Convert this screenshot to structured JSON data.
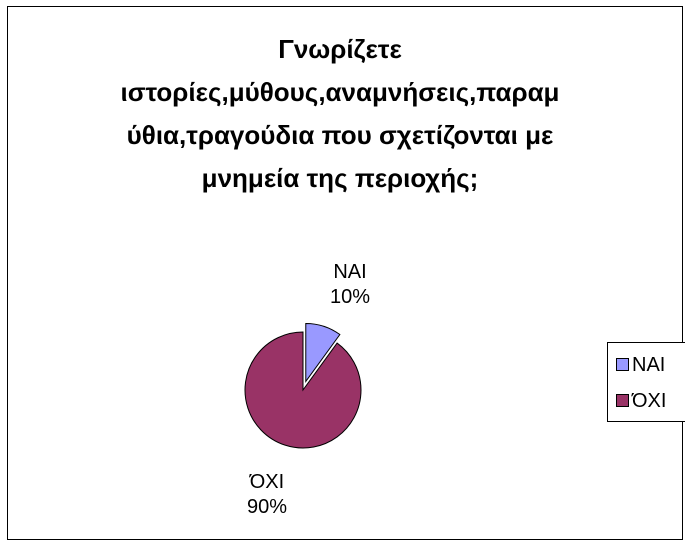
{
  "chart_data": {
    "type": "pie",
    "title_lines": [
      "Γνωρίζετε",
      "ιστορίες,μύθους,αναμνήσεις,παραμ",
      "ύθια,τραγούδια που σχετίζονται με",
      "μνημεία της περιοχής;"
    ],
    "slices": [
      {
        "label": "ΝΑΙ",
        "value": 10,
        "percent_label": "10%",
        "color": "#9999ff",
        "exploded": true
      },
      {
        "label": "ΌΧΙ",
        "value": 90,
        "percent_label": "90%",
        "color": "#993366",
        "exploded": false
      }
    ],
    "legend": {
      "position": "right",
      "entries": [
        "ΝΑΙ",
        "ΌΧΙ"
      ]
    }
  }
}
